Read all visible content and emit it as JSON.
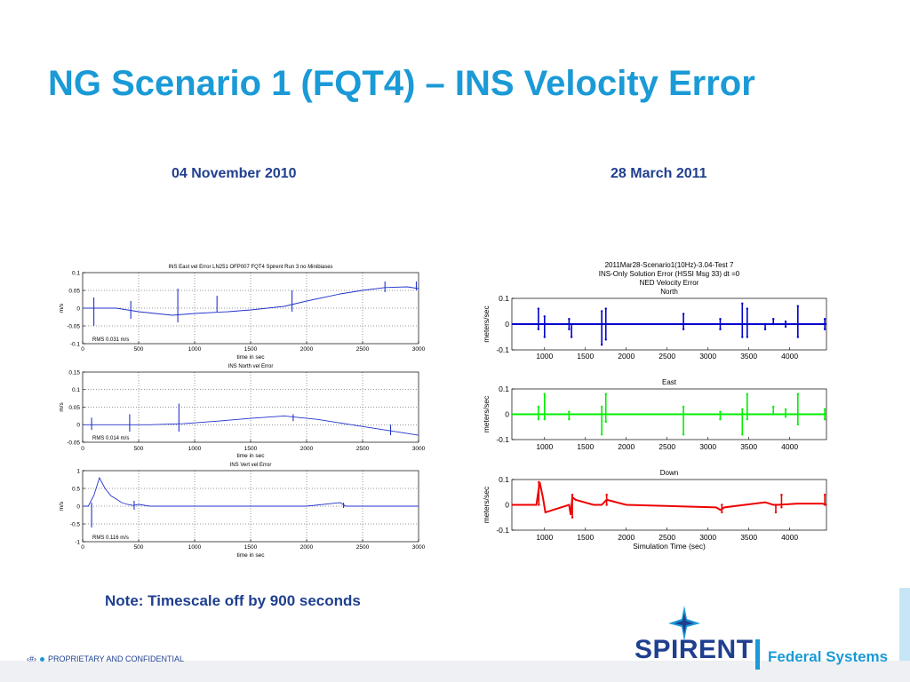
{
  "slide": {
    "title": "NG Scenario 1 (FQT4) – INS Velocity Error",
    "left_heading": "04 November 2010",
    "right_heading": "28 March 2011",
    "note": "Note:  Timescale off by 900 seconds",
    "footer": {
      "page_marker": "‹#›",
      "text": "PROPRIETARY AND CONFIDENTIAL"
    },
    "logo": {
      "word": "SPIRENT",
      "suffix": "Federal Systems",
      "icon": "spirent-star-icon"
    }
  },
  "colors": {
    "title": "#1a9ad6",
    "headings": "#1f3f8f",
    "north": "#0000cc",
    "east": "#00ee00",
    "down": "#ee0000",
    "left_series": "#2233cc"
  },
  "chart_data": [
    {
      "type": "line",
      "panel": "left-1",
      "title": "INS East vel Error LN251 OFP007 FQT4 Spirent Run 3 no Minibiases",
      "xlabel": "time in sec",
      "ylabel": "m/s",
      "xlim": [
        0,
        3000
      ],
      "ylim": [
        -0.1,
        0.1
      ],
      "xticks": [
        0,
        500,
        1000,
        1500,
        2000,
        2500,
        3000
      ],
      "yticks": [
        0.1,
        0.05,
        0,
        -0.05,
        -0.1
      ],
      "ytick_labels": [
        "0.1",
        "0.05",
        "0",
        "-0.05",
        "-0.1"
      ],
      "grid": true,
      "annotation": "RMS 0.031 m/s",
      "series": [
        {
          "color": "#2233cc",
          "x": [
            0,
            100,
            300,
            500,
            800,
            1000,
            1300,
            1500,
            1800,
            2000,
            2300,
            2500,
            2700,
            2900,
            3000
          ],
          "y": [
            0.0,
            0.0,
            0.0,
            -0.01,
            -0.02,
            -0.015,
            -0.01,
            -0.005,
            0.005,
            0.02,
            0.04,
            0.05,
            0.058,
            0.06,
            0.055
          ]
        }
      ],
      "spikes": [
        [
          100,
          -0.05,
          0.03
        ],
        [
          430,
          -0.03,
          0.02
        ],
        [
          850,
          -0.04,
          0.055
        ],
        [
          1200,
          -0.01,
          0.035
        ],
        [
          1870,
          -0.01,
          0.05
        ],
        [
          2700,
          0.045,
          0.075
        ],
        [
          2980,
          0.05,
          0.075
        ]
      ]
    },
    {
      "type": "line",
      "panel": "left-2",
      "title": "INS North vel Error",
      "xlabel": "time in sec",
      "ylabel": "m/s",
      "xlim": [
        0,
        3000
      ],
      "ylim": [
        -0.05,
        0.15
      ],
      "xticks": [
        0,
        500,
        1000,
        1500,
        2000,
        2500,
        3000
      ],
      "yticks": [
        0.15,
        0.1,
        0.05,
        0,
        -0.05
      ],
      "ytick_labels": [
        "0.15",
        "0.1",
        "0.05",
        "0",
        "-0.05"
      ],
      "grid": true,
      "annotation": "RMS 0.014 m/s",
      "series": [
        {
          "color": "#2233cc",
          "x": [
            0,
            300,
            600,
            900,
            1200,
            1500,
            1800,
            2100,
            2400,
            2700,
            3000
          ],
          "y": [
            0.0,
            0.0,
            0.0,
            0.003,
            0.01,
            0.018,
            0.025,
            0.015,
            0.0,
            -0.015,
            -0.03
          ]
        }
      ],
      "spikes": [
        [
          80,
          -0.015,
          0.02
        ],
        [
          420,
          -0.02,
          0.03
        ],
        [
          860,
          -0.02,
          0.06
        ],
        [
          1880,
          0.01,
          0.03
        ],
        [
          2750,
          -0.03,
          0.0
        ]
      ]
    },
    {
      "type": "line",
      "panel": "left-3",
      "title": "INS Vert vel Error",
      "xlabel": "time in sec",
      "ylabel": "m/s",
      "xlim": [
        0,
        3000
      ],
      "ylim": [
        -1,
        1
      ],
      "xticks": [
        0,
        500,
        1000,
        1500,
        2000,
        2500,
        3000
      ],
      "yticks": [
        1,
        0.5,
        0,
        -0.5,
        -1
      ],
      "ytick_labels": [
        "1",
        "0.5",
        "0",
        "-0.5",
        "-1"
      ],
      "grid": true,
      "annotation": "RMS 0.116 m/s",
      "series": [
        {
          "color": "#2233cc",
          "x": [
            0,
            50,
            100,
            150,
            200,
            250,
            300,
            350,
            400,
            450,
            500,
            600,
            1000,
            2000,
            2300,
            2350,
            2400,
            3000
          ],
          "y": [
            0.0,
            0.0,
            0.3,
            0.8,
            0.5,
            0.3,
            0.2,
            0.1,
            0.05,
            0.02,
            0.05,
            0.0,
            0.0,
            0.0,
            0.1,
            0.0,
            0.0,
            0.0
          ]
        }
      ],
      "spikes": [
        [
          80,
          -0.6,
          0.1
        ],
        [
          460,
          -0.1,
          0.15
        ],
        [
          2330,
          -0.05,
          0.1
        ]
      ]
    },
    {
      "type": "line",
      "panel": "right-1",
      "title": "2011Mar28-Scenario1(10Hz)-3.04-Test 7",
      "subtitle": "INS-Only Solution Error (HSSI Msg 33)  dt =0",
      "subtitle2": "NED Velocity Error",
      "panel_title": "North",
      "xlabel": "",
      "ylabel": "meters/sec",
      "xlim": [
        600,
        4450
      ],
      "ylim": [
        -0.1,
        0.1
      ],
      "xticks": [
        1000,
        1500,
        2000,
        2500,
        3000,
        3500,
        4000
      ],
      "yticks": [
        0.1,
        0,
        -0.1
      ],
      "ytick_labels": [
        "0.1",
        "0",
        "-0.1"
      ],
      "grid": false,
      "series": [
        {
          "color": "#0000cc",
          "x": [
            600,
            4450
          ],
          "y": [
            0.0,
            0.0
          ]
        }
      ],
      "spikes": [
        [
          925,
          -0.02,
          0.06
        ],
        [
          1000,
          -0.05,
          0.03
        ],
        [
          1300,
          -0.02,
          0.02
        ],
        [
          1330,
          -0.05,
          0.0
        ],
        [
          1700,
          -0.08,
          0.05
        ],
        [
          1750,
          -0.06,
          0.06
        ],
        [
          2700,
          -0.02,
          0.04
        ],
        [
          3150,
          -0.02,
          0.02
        ],
        [
          3420,
          -0.05,
          0.08
        ],
        [
          3480,
          -0.05,
          0.06
        ],
        [
          3700,
          -0.02,
          0.0
        ],
        [
          3800,
          0.0,
          0.02
        ],
        [
          3950,
          -0.01,
          0.01
        ],
        [
          4100,
          -0.05,
          0.07
        ],
        [
          4430,
          -0.02,
          0.02
        ]
      ]
    },
    {
      "type": "line",
      "panel": "right-2",
      "panel_title": "East",
      "xlabel": "",
      "ylabel": "meters/sec",
      "xlim": [
        600,
        4450
      ],
      "ylim": [
        -0.1,
        0.1
      ],
      "xticks": [
        1000,
        1500,
        2000,
        2500,
        3000,
        3500,
        4000
      ],
      "yticks": [
        0.1,
        0,
        -0.1
      ],
      "ytick_labels": [
        "0.1",
        "0",
        "-0.1"
      ],
      "grid": false,
      "series": [
        {
          "color": "#00ee00",
          "x": [
            600,
            4450
          ],
          "y": [
            0.0,
            0.0
          ]
        }
      ],
      "spikes": [
        [
          925,
          -0.02,
          0.03
        ],
        [
          1000,
          -0.02,
          0.08
        ],
        [
          1300,
          -0.02,
          0.01
        ],
        [
          1700,
          -0.08,
          0.03
        ],
        [
          1750,
          -0.03,
          0.08
        ],
        [
          2700,
          -0.08,
          0.03
        ],
        [
          3150,
          -0.02,
          0.01
        ],
        [
          3420,
          -0.08,
          0.02
        ],
        [
          3480,
          -0.02,
          0.08
        ],
        [
          3800,
          0.0,
          0.03
        ],
        [
          3950,
          -0.01,
          0.02
        ],
        [
          4100,
          -0.04,
          0.08
        ],
        [
          4430,
          -0.02,
          0.02
        ]
      ]
    },
    {
      "type": "line",
      "panel": "right-3",
      "panel_title": "Down",
      "xlabel": "Simulation Time (sec)",
      "ylabel": "meters/sec",
      "xlim": [
        600,
        4450
      ],
      "ylim": [
        -0.1,
        0.1
      ],
      "xticks": [
        1000,
        1500,
        2000,
        2500,
        3000,
        3500,
        4000
      ],
      "yticks": [
        0.1,
        0,
        -0.1
      ],
      "ytick_labels": [
        "0.1",
        "0",
        "-0.1"
      ],
      "grid": false,
      "series": [
        {
          "color": "#ee0000",
          "x": [
            600,
            900,
            940,
            980,
            1010,
            1200,
            1300,
            1320,
            1340,
            1380,
            1600,
            1700,
            1760,
            2000,
            3100,
            3150,
            3200,
            3700,
            3800,
            3850,
            4100,
            4400,
            4450
          ],
          "y": [
            0.0,
            0.0,
            0.09,
            0.03,
            -0.03,
            -0.01,
            0.0,
            -0.04,
            0.03,
            0.02,
            0.0,
            0.0,
            0.02,
            0.0,
            -0.01,
            -0.02,
            -0.01,
            0.01,
            0.0,
            0.0,
            0.005,
            0.005,
            0.0
          ]
        }
      ],
      "spikes": [
        [
          930,
          0.0,
          0.09
        ],
        [
          1340,
          -0.05,
          0.04
        ],
        [
          1760,
          0.0,
          0.04
        ],
        [
          3170,
          -0.03,
          0.0
        ],
        [
          3830,
          -0.03,
          0.0
        ],
        [
          3900,
          -0.01,
          0.04
        ],
        [
          4430,
          0.0,
          0.04
        ]
      ]
    }
  ]
}
